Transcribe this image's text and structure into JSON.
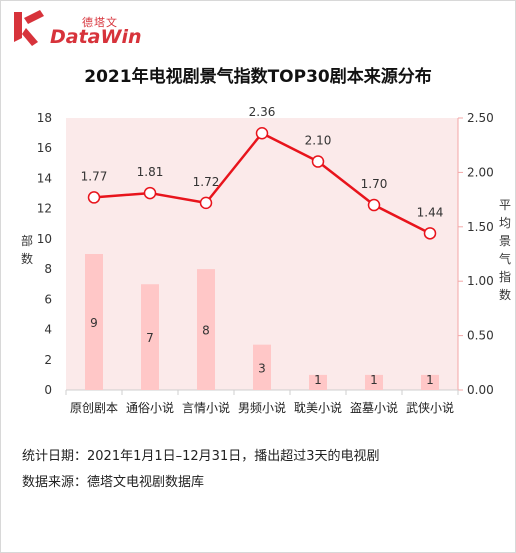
{
  "brand": {
    "cn": "德塔文",
    "en": "DataWin",
    "color": "#d7333b"
  },
  "chart_data": {
    "type": "bar+line",
    "title": "2021年电视剧景气指数TOP30剧本来源分布",
    "categories": [
      "原创剧本",
      "通俗小说",
      "言情小说",
      "男频小说",
      "耽美小说",
      "盗墓小说",
      "武侠小说"
    ],
    "bars": {
      "name": "部数",
      "values": [
        9,
        7,
        8,
        3,
        1,
        1,
        1
      ],
      "color": "#ffc7c7"
    },
    "line": {
      "name": "平均景气指数",
      "values": [
        1.77,
        1.81,
        1.72,
        2.36,
        2.1,
        1.7,
        1.44
      ],
      "color": "#e8141c"
    },
    "left_axis": {
      "label": "部数",
      "min": 0,
      "max": 18,
      "ticks": [
        "0",
        "2",
        "4",
        "6",
        "8",
        "10",
        "12",
        "14",
        "16",
        "18"
      ]
    },
    "right_axis": {
      "label": "平均景气指数",
      "min": 0,
      "max": 2.5,
      "ticks": [
        "0.00",
        "0.50",
        "1.00",
        "1.50",
        "2.00",
        "2.50"
      ]
    },
    "grid": false,
    "legend": "none"
  },
  "notes": {
    "date": "统计日期：2021年1月1日–12月31日，播出超过3天的电视剧",
    "source": "数据来源：德塔文电视剧数据库"
  }
}
